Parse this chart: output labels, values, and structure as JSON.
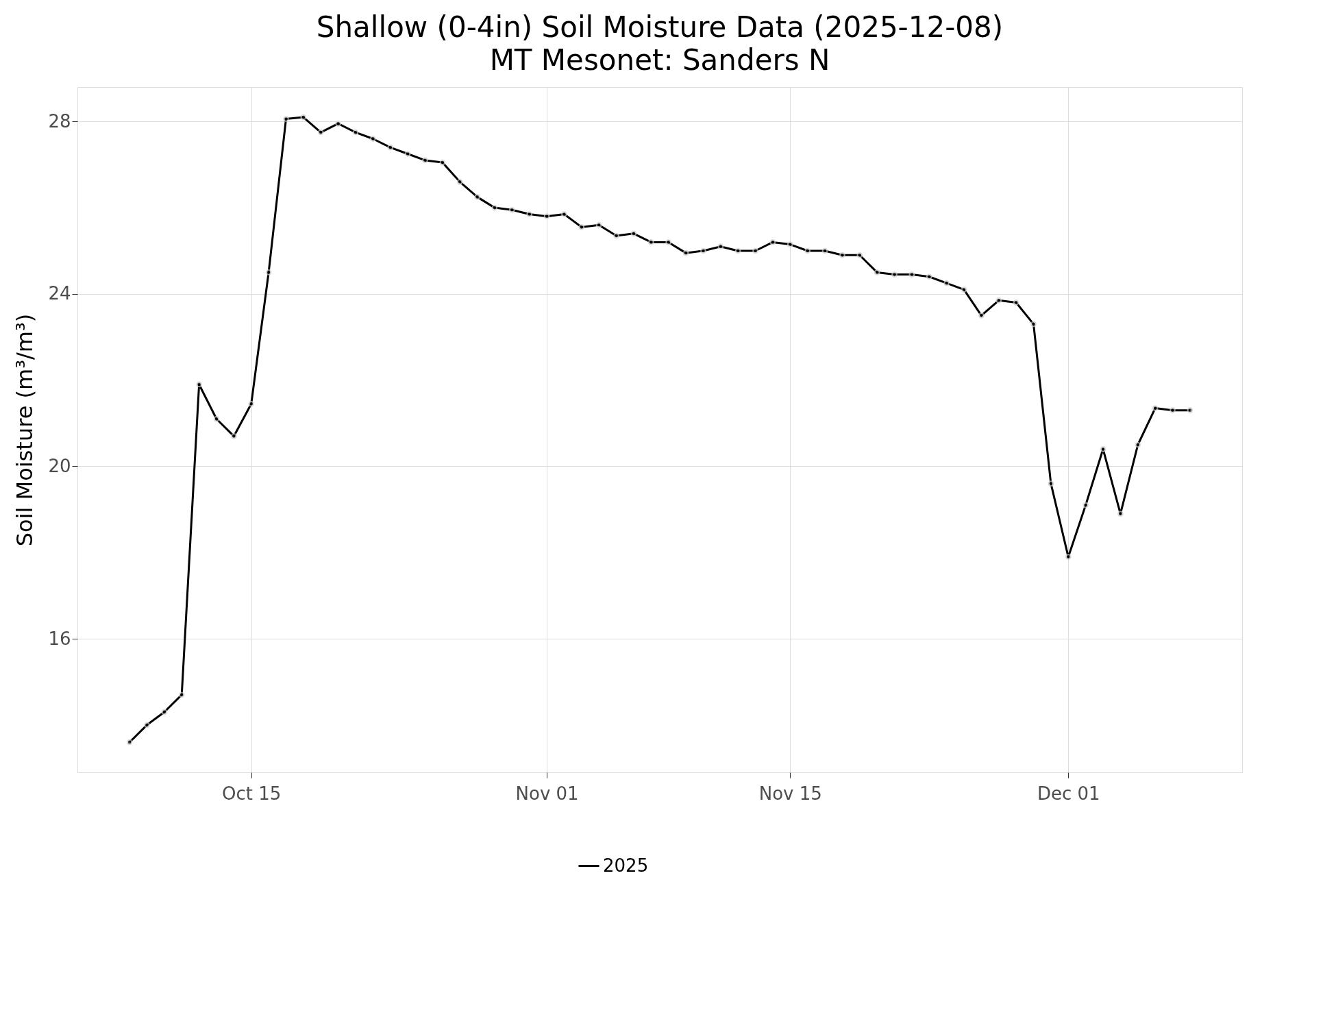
{
  "chart_data": {
    "type": "line",
    "title": "Shallow (0-4in) Soil Moisture Data (2025-12-08)",
    "subtitle": "MT Mesonet: Sanders N",
    "ylabel": "Soil Moisture (m³/m³)",
    "x": [
      "2025-10-08",
      "2025-10-09",
      "2025-10-10",
      "2025-10-11",
      "2025-10-12",
      "2025-10-13",
      "2025-10-14",
      "2025-10-15",
      "2025-10-16",
      "2025-10-17",
      "2025-10-18",
      "2025-10-19",
      "2025-10-20",
      "2025-10-21",
      "2025-10-22",
      "2025-10-23",
      "2025-10-24",
      "2025-10-25",
      "2025-10-26",
      "2025-10-27",
      "2025-10-28",
      "2025-10-29",
      "2025-10-30",
      "2025-10-31",
      "2025-11-01",
      "2025-11-02",
      "2025-11-03",
      "2025-11-04",
      "2025-11-05",
      "2025-11-06",
      "2025-11-07",
      "2025-11-08",
      "2025-11-09",
      "2025-11-10",
      "2025-11-11",
      "2025-11-12",
      "2025-11-13",
      "2025-11-14",
      "2025-11-15",
      "2025-11-16",
      "2025-11-17",
      "2025-11-18",
      "2025-11-19",
      "2025-11-20",
      "2025-11-21",
      "2025-11-22",
      "2025-11-23",
      "2025-11-24",
      "2025-11-25",
      "2025-11-26",
      "2025-11-27",
      "2025-11-28",
      "2025-11-29",
      "2025-11-30",
      "2025-12-01",
      "2025-12-02",
      "2025-12-03",
      "2025-12-04",
      "2025-12-05",
      "2025-12-06",
      "2025-12-07",
      "2025-12-08"
    ],
    "series": [
      {
        "name": "2025",
        "color": "#000000",
        "values": [
          13.6,
          14.0,
          14.3,
          14.7,
          21.9,
          21.1,
          20.7,
          21.45,
          24.5,
          28.06,
          28.1,
          27.75,
          27.95,
          27.75,
          27.6,
          27.4,
          27.25,
          27.1,
          27.05,
          26.6,
          26.25,
          26.0,
          25.95,
          25.85,
          25.8,
          25.85,
          25.55,
          25.6,
          25.35,
          25.4,
          25.2,
          25.2,
          24.95,
          25.0,
          25.1,
          25.0,
          25.0,
          25.2,
          25.15,
          25.0,
          25.0,
          24.9,
          24.9,
          24.5,
          24.45,
          24.45,
          24.4,
          24.25,
          24.1,
          23.5,
          23.85,
          23.8,
          23.3,
          19.6,
          17.9,
          19.1,
          20.4,
          18.9,
          20.5,
          21.35,
          21.3,
          21.3
        ]
      }
    ],
    "xlim": [
      "2025-10-05",
      "2025-12-11"
    ],
    "xticks": [
      {
        "value": "2025-10-15",
        "label": "Oct 15"
      },
      {
        "value": "2025-11-01",
        "label": "Nov 01"
      },
      {
        "value": "2025-11-15",
        "label": "Nov 15"
      },
      {
        "value": "2025-12-01",
        "label": "Dec 01"
      }
    ],
    "ylim": [
      12.9,
      28.8
    ],
    "yticks": [
      16,
      20,
      24,
      28
    ],
    "grid": true,
    "legend": "bottom",
    "marker": "circle",
    "line_style": "solid"
  }
}
